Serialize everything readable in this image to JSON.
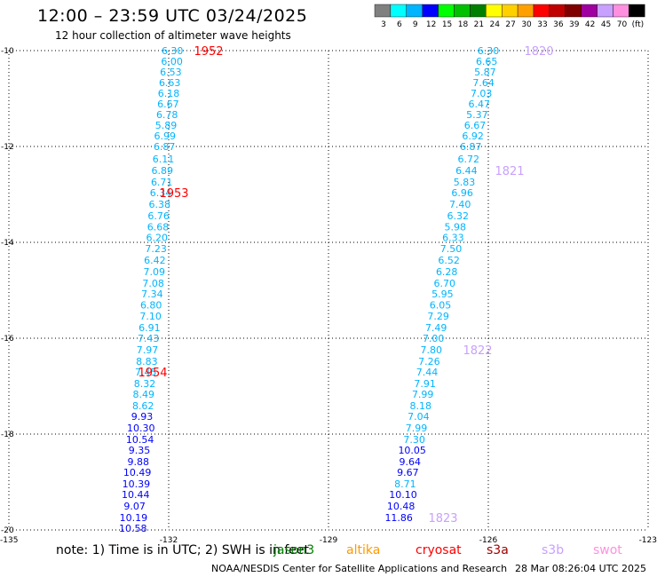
{
  "header": {
    "title": "12:00 – 23:59 UTC 03/24/2025",
    "subtitle": "12 hour collection of altimeter wave heights"
  },
  "colorbar": {
    "labels": [
      "3",
      "6",
      "9",
      "12",
      "15",
      "18",
      "21",
      "24",
      "27",
      "30",
      "33",
      "36",
      "39",
      "42",
      "45",
      "70",
      "(ft)"
    ],
    "colors": [
      "#808080",
      "#00ffff",
      "#00b4ff",
      "#0000ff",
      "#00ff00",
      "#00c000",
      "#008000",
      "#ffff00",
      "#ffd000",
      "#ffa000",
      "#ff0000",
      "#c00000",
      "#800000",
      "#a000a0",
      "#c8a0ff",
      "#ff90e0",
      "#000000"
    ]
  },
  "footer": {
    "note": "note: 1) Time is in UTC; 2) SWH is in feet",
    "satellites": [
      {
        "name": "jason3",
        "color": "#008000"
      },
      {
        "name": "altika",
        "color": "#ff9900"
      },
      {
        "name": "cryosat",
        "color": "#ff0000"
      },
      {
        "name": "s3a",
        "color": "#a00000"
      },
      {
        "name": "s3b",
        "color": "#c8a0ff"
      },
      {
        "name": "swot",
        "color": "#ff90e0"
      }
    ],
    "credit": "NOAA/NESDIS Center for Satellite Applications and Research",
    "timestamp": "28 Mar 08:26:04 UTC 2025"
  },
  "chart_data": {
    "type": "scatter",
    "title": "12:00 – 23:59 UTC 03/24/2025",
    "subtitle": "12 hour collection of altimeter wave heights",
    "xlim": [
      -135,
      -123
    ],
    "ylim": [
      -20,
      -10
    ],
    "x_ticks": [
      -135,
      -132,
      -129,
      -126,
      -123
    ],
    "x_tick_labels": [
      "-135",
      "-132",
      "-129",
      "-126",
      "-123"
    ],
    "y_ticks": [
      -10,
      -12,
      -14,
      -16,
      -18,
      -20
    ],
    "y_tick_labels": [
      "-10",
      "-12",
      "-14",
      "-16",
      "-18",
      "-20"
    ],
    "grid": "dotted",
    "series": [
      {
        "track": "west",
        "points": [
          {
            "lon": -131.93,
            "lat": -10.0,
            "v": "6.30"
          },
          {
            "lon": -131.94,
            "lat": -10.22,
            "v": "6.00"
          },
          {
            "lon": -131.96,
            "lat": -10.44,
            "v": "6.53"
          },
          {
            "lon": -131.98,
            "lat": -10.67,
            "v": "6.63"
          },
          {
            "lon": -132.0,
            "lat": -10.89,
            "v": "6.18"
          },
          {
            "lon": -132.01,
            "lat": -11.11,
            "v": "6.67"
          },
          {
            "lon": -132.03,
            "lat": -11.33,
            "v": "6.78"
          },
          {
            "lon": -132.05,
            "lat": -11.56,
            "v": "5.89"
          },
          {
            "lon": -132.07,
            "lat": -11.78,
            "v": "6.99"
          },
          {
            "lon": -132.08,
            "lat": -12.0,
            "v": "6.87"
          },
          {
            "lon": -132.1,
            "lat": -12.26,
            "v": "6.11"
          },
          {
            "lon": -132.12,
            "lat": -12.5,
            "v": "6.89"
          },
          {
            "lon": -132.13,
            "lat": -12.74,
            "v": "6.71"
          },
          {
            "lon": -132.15,
            "lat": -12.96,
            "v": "6.34"
          },
          {
            "lon": -132.17,
            "lat": -13.2,
            "v": "6.38"
          },
          {
            "lon": -132.19,
            "lat": -13.44,
            "v": "6.76"
          },
          {
            "lon": -132.2,
            "lat": -13.68,
            "v": "6.68"
          },
          {
            "lon": -132.22,
            "lat": -13.9,
            "v": "6.20"
          },
          {
            "lon": -132.24,
            "lat": -14.13,
            "v": "7.23"
          },
          {
            "lon": -132.26,
            "lat": -14.37,
            "v": "6.42"
          },
          {
            "lon": -132.27,
            "lat": -14.61,
            "v": "7.09"
          },
          {
            "lon": -132.29,
            "lat": -14.85,
            "v": "7.08"
          },
          {
            "lon": -132.31,
            "lat": -15.07,
            "v": "7.34"
          },
          {
            "lon": -132.33,
            "lat": -15.31,
            "v": "6.80"
          },
          {
            "lon": -132.34,
            "lat": -15.54,
            "v": "7.10"
          },
          {
            "lon": -132.36,
            "lat": -15.78,
            "v": "6.91"
          },
          {
            "lon": -132.38,
            "lat": -16.0,
            "v": "7.43"
          },
          {
            "lon": -132.4,
            "lat": -16.24,
            "v": "7.97"
          },
          {
            "lon": -132.41,
            "lat": -16.48,
            "v": "8.83"
          },
          {
            "lon": -132.43,
            "lat": -16.7,
            "v": "7.45"
          },
          {
            "lon": -132.45,
            "lat": -16.94,
            "v": "8.32"
          },
          {
            "lon": -132.47,
            "lat": -17.17,
            "v": "8.49"
          },
          {
            "lon": -132.48,
            "lat": -17.41,
            "v": "8.62"
          },
          {
            "lon": -132.5,
            "lat": -17.63,
            "v": "9.93"
          },
          {
            "lon": -132.52,
            "lat": -17.87,
            "v": "10.30"
          },
          {
            "lon": -132.54,
            "lat": -18.11,
            "v": "10.54"
          },
          {
            "lon": -132.55,
            "lat": -18.33,
            "v": "9.35"
          },
          {
            "lon": -132.57,
            "lat": -18.57,
            "v": "9.88"
          },
          {
            "lon": -132.59,
            "lat": -18.8,
            "v": "10.49"
          },
          {
            "lon": -132.61,
            "lat": -19.04,
            "v": "10.39"
          },
          {
            "lon": -132.62,
            "lat": -19.26,
            "v": "10.44"
          },
          {
            "lon": -132.64,
            "lat": -19.5,
            "v": "9.07"
          },
          {
            "lon": -132.66,
            "lat": -19.74,
            "v": "10.19"
          },
          {
            "lon": -132.67,
            "lat": -19.96,
            "v": "10.58"
          }
        ]
      },
      {
        "track": "east",
        "points": [
          {
            "lon": -126.0,
            "lat": -10.0,
            "v": "6.30"
          },
          {
            "lon": -126.03,
            "lat": -10.22,
            "v": "6.65"
          },
          {
            "lon": -126.06,
            "lat": -10.44,
            "v": "5.87"
          },
          {
            "lon": -126.09,
            "lat": -10.67,
            "v": "7.64"
          },
          {
            "lon": -126.13,
            "lat": -10.89,
            "v": "7.03"
          },
          {
            "lon": -126.17,
            "lat": -11.11,
            "v": "6.47"
          },
          {
            "lon": -126.21,
            "lat": -11.33,
            "v": "5.37"
          },
          {
            "lon": -126.25,
            "lat": -11.56,
            "v": "6.67"
          },
          {
            "lon": -126.29,
            "lat": -11.78,
            "v": "6.92"
          },
          {
            "lon": -126.33,
            "lat": -12.0,
            "v": "6.87"
          },
          {
            "lon": -126.37,
            "lat": -12.26,
            "v": "6.72"
          },
          {
            "lon": -126.41,
            "lat": -12.5,
            "v": "6.44"
          },
          {
            "lon": -126.45,
            "lat": -12.74,
            "v": "5.83"
          },
          {
            "lon": -126.49,
            "lat": -12.96,
            "v": "6.96"
          },
          {
            "lon": -126.53,
            "lat": -13.2,
            "v": "7.40"
          },
          {
            "lon": -126.57,
            "lat": -13.44,
            "v": "6.32"
          },
          {
            "lon": -126.62,
            "lat": -13.68,
            "v": "5.98"
          },
          {
            "lon": -126.66,
            "lat": -13.9,
            "v": "6.33"
          },
          {
            "lon": -126.7,
            "lat": -14.13,
            "v": "7.50"
          },
          {
            "lon": -126.74,
            "lat": -14.37,
            "v": "6.52"
          },
          {
            "lon": -126.78,
            "lat": -14.61,
            "v": "6.28"
          },
          {
            "lon": -126.82,
            "lat": -14.85,
            "v": "6.70"
          },
          {
            "lon": -126.86,
            "lat": -15.07,
            "v": "5.95"
          },
          {
            "lon": -126.9,
            "lat": -15.31,
            "v": "6.05"
          },
          {
            "lon": -126.94,
            "lat": -15.54,
            "v": "7.29"
          },
          {
            "lon": -126.98,
            "lat": -15.78,
            "v": "7.49"
          },
          {
            "lon": -127.03,
            "lat": -16.0,
            "v": "7.00"
          },
          {
            "lon": -127.07,
            "lat": -16.24,
            "v": "7.80"
          },
          {
            "lon": -127.11,
            "lat": -16.48,
            "v": "7.26"
          },
          {
            "lon": -127.15,
            "lat": -16.7,
            "v": "7.44"
          },
          {
            "lon": -127.19,
            "lat": -16.94,
            "v": "7.91"
          },
          {
            "lon": -127.23,
            "lat": -17.17,
            "v": "7.99"
          },
          {
            "lon": -127.27,
            "lat": -17.41,
            "v": "8.18"
          },
          {
            "lon": -127.31,
            "lat": -17.63,
            "v": "7.04"
          },
          {
            "lon": -127.35,
            "lat": -17.87,
            "v": "7.99"
          },
          {
            "lon": -127.39,
            "lat": -18.11,
            "v": "7.30"
          },
          {
            "lon": -127.43,
            "lat": -18.33,
            "v": "10.05"
          },
          {
            "lon": -127.47,
            "lat": -18.57,
            "v": "9.64"
          },
          {
            "lon": -127.51,
            "lat": -18.8,
            "v": "9.67"
          },
          {
            "lon": -127.56,
            "lat": -19.04,
            "v": "8.71"
          },
          {
            "lon": -127.6,
            "lat": -19.26,
            "v": "10.10"
          },
          {
            "lon": -127.64,
            "lat": -19.5,
            "v": "10.48"
          },
          {
            "lon": -127.68,
            "lat": -19.74,
            "v": "11.86"
          }
        ]
      }
    ],
    "time_labels": [
      {
        "lon": -131.25,
        "lat": -10.0,
        "text": "1952",
        "color": "#ff0000"
      },
      {
        "lon": -131.9,
        "lat": -12.96,
        "text": "1953",
        "color": "#ff0000"
      },
      {
        "lon": -132.3,
        "lat": -16.7,
        "text": "1954",
        "color": "#ff0000"
      },
      {
        "lon": -125.05,
        "lat": -10.0,
        "text": "1820",
        "color": "#c8a0ff"
      },
      {
        "lon": -125.6,
        "lat": -12.5,
        "text": "1821",
        "color": "#c8a0ff"
      },
      {
        "lon": -126.2,
        "lat": -16.24,
        "text": "1822",
        "color": "#c8a0ff"
      },
      {
        "lon": -126.85,
        "lat": -19.74,
        "text": "1823",
        "color": "#c8a0ff"
      }
    ]
  }
}
